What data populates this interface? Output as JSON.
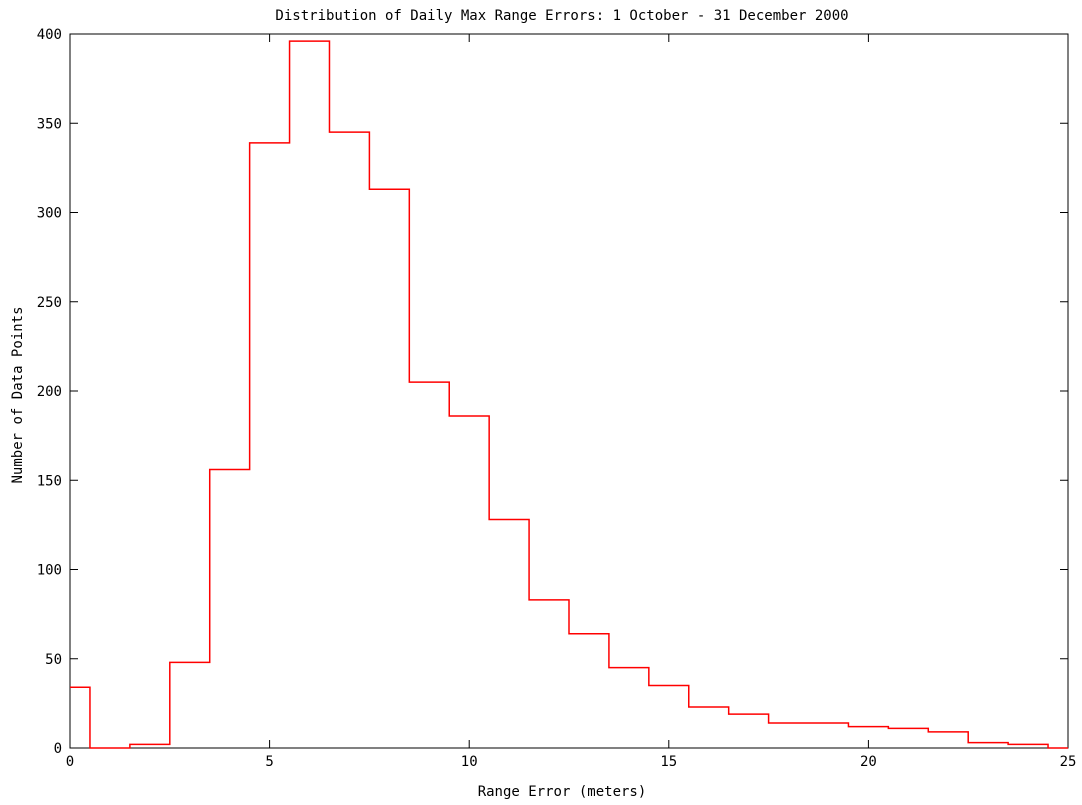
{
  "chart_data": {
    "type": "bar",
    "style": "step-histogram",
    "title": "Distribution of Daily Max Range Errors: 1 October - 31 December 2000",
    "xlabel": "Range Error (meters)",
    "ylabel": "Number of Data Points",
    "xlim": [
      0,
      25
    ],
    "ylim": [
      0,
      400
    ],
    "xticks": [
      0,
      5,
      10,
      15,
      20,
      25
    ],
    "yticks": [
      0,
      50,
      100,
      150,
      200,
      250,
      300,
      350,
      400
    ],
    "grid": false,
    "bin_width": 1,
    "bins": [
      {
        "x": 0,
        "value": 34
      },
      {
        "x": 1,
        "value": 0
      },
      {
        "x": 2,
        "value": 2
      },
      {
        "x": 3,
        "value": 48
      },
      {
        "x": 4,
        "value": 156
      },
      {
        "x": 5,
        "value": 339
      },
      {
        "x": 6,
        "value": 396
      },
      {
        "x": 7,
        "value": 345
      },
      {
        "x": 8,
        "value": 313
      },
      {
        "x": 9,
        "value": 205
      },
      {
        "x": 10,
        "value": 186
      },
      {
        "x": 11,
        "value": 128
      },
      {
        "x": 12,
        "value": 83
      },
      {
        "x": 13,
        "value": 64
      },
      {
        "x": 14,
        "value": 45
      },
      {
        "x": 15,
        "value": 35
      },
      {
        "x": 16,
        "value": 23
      },
      {
        "x": 17,
        "value": 19
      },
      {
        "x": 18,
        "value": 14
      },
      {
        "x": 19,
        "value": 14
      },
      {
        "x": 20,
        "value": 12
      },
      {
        "x": 21,
        "value": 11
      },
      {
        "x": 22,
        "value": 9
      },
      {
        "x": 23,
        "value": 3
      },
      {
        "x": 24,
        "value": 2
      },
      {
        "x": 25,
        "value": 0
      }
    ],
    "line_color": "#ff0000"
  }
}
